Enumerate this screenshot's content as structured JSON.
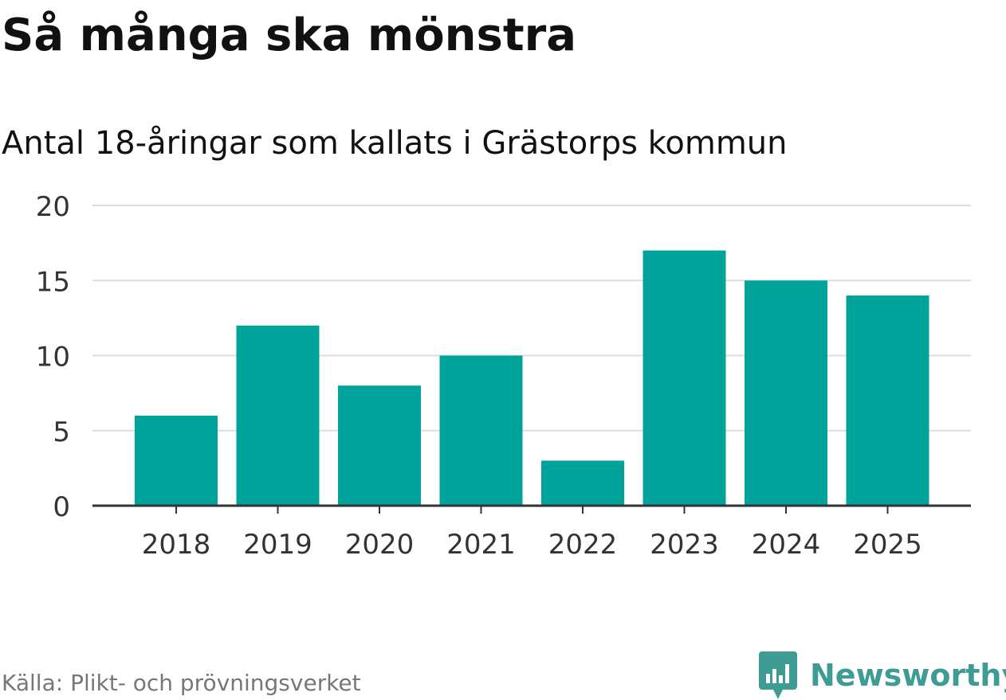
{
  "title": "Så många ska mönstra",
  "subtitle": "Antal 18-åringar som kallats i Grästorps kommun",
  "source": "Källa: Plikt- och prövningsverket",
  "brand": {
    "name": "Newsworthy",
    "icon": "newsworthy-logo-icon",
    "color": "#3e9c94"
  },
  "chart_data": {
    "type": "bar",
    "categories": [
      "2018",
      "2019",
      "2020",
      "2021",
      "2022",
      "2023",
      "2024",
      "2025"
    ],
    "values": [
      6,
      12,
      8,
      10,
      3,
      17,
      15,
      14
    ],
    "ylim": [
      0,
      20
    ],
    "yticks": [
      0,
      5,
      10,
      15,
      20
    ],
    "grid": true,
    "bar_color": "#00a39a",
    "grid_color": "#dddddd",
    "axis_color": "#333333"
  }
}
